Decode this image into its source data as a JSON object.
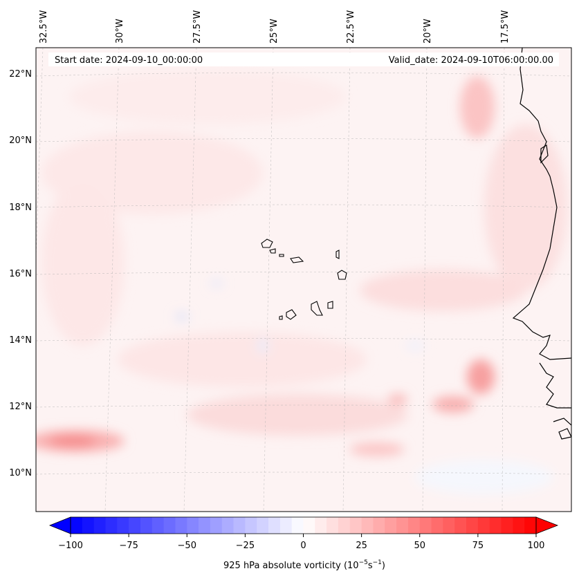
{
  "map": {
    "start_date": "Start date: 2024-09-10_00:00:00",
    "valid_date": "Valid_date: 2024-09-10T06:00:00.00",
    "lon_labels": [
      "32.5°W",
      "30°W",
      "27.5°W",
      "25°W",
      "22.5°W",
      "20°W",
      "17.5°W"
    ],
    "lat_labels": [
      "22°N",
      "20°N",
      "18°N",
      "16°N",
      "14°N",
      "12°N",
      "10°N"
    ],
    "colorbar": {
      "label": "925 hPa absolute vorticity (10",
      "label_exp1": "−5",
      "label_mid": "s",
      "label_exp2": "−1",
      "label_end": ")",
      "ticks": [
        "−100",
        "−75",
        "−50",
        "−25",
        "0",
        "25",
        "50",
        "75",
        "100"
      ],
      "min_color": "#0000ff",
      "max_color": "#ff0000"
    }
  }
}
